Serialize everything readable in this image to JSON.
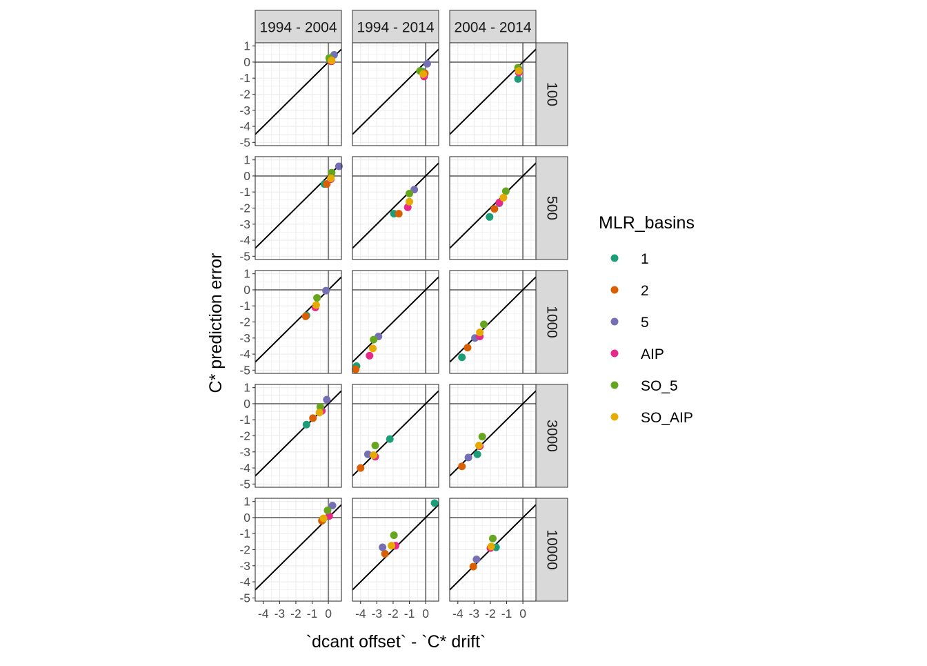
{
  "chart_data": {
    "type": "scatter",
    "facet_grid": true,
    "xlabel": "`dcant offset` - `C* drift`",
    "ylabel": "C* prediction error",
    "xlim": [
      -4.5,
      0.8
    ],
    "ylim": [
      -5.2,
      1.2
    ],
    "x_ticks": [
      -4,
      -3,
      -2,
      -1,
      0
    ],
    "y_ticks": [
      1,
      0,
      -1,
      -2,
      -3,
      -4,
      -5
    ],
    "reference_lines": {
      "hline": 0,
      "vline": 0,
      "identity": true
    },
    "grid": true,
    "columns": [
      "1994 - 2004",
      "1994 - 2014",
      "2004 - 2014"
    ],
    "rows": [
      "100",
      "500",
      "1000",
      "3000",
      "10000"
    ],
    "legend": {
      "title": "MLR_basins",
      "position": "right",
      "entries": [
        {
          "label": "1",
          "color": "#1B9E77"
        },
        {
          "label": "2",
          "color": "#D95F02"
        },
        {
          "label": "5",
          "color": "#7570B3"
        },
        {
          "label": "AIP",
          "color": "#E7298A"
        },
        {
          "label": "SO_5",
          "color": "#66A61E"
        },
        {
          "label": "SO_AIP",
          "color": "#E6AB02"
        }
      ]
    },
    "panels": [
      {
        "row": "100",
        "col": "1994 - 2004",
        "points": [
          {
            "series": "1",
            "x": 0.1,
            "y": 0.1
          },
          {
            "series": "2",
            "x": 0.15,
            "y": 0.05
          },
          {
            "series": "5",
            "x": 0.35,
            "y": 0.45
          },
          {
            "series": "AIP",
            "x": 0.2,
            "y": 0.05
          },
          {
            "series": "SO_5",
            "x": 0.05,
            "y": 0.25
          },
          {
            "series": "SO_AIP",
            "x": 0.2,
            "y": 0.1
          }
        ]
      },
      {
        "row": "100",
        "col": "1994 - 2014",
        "points": [
          {
            "series": "1",
            "x": -0.2,
            "y": -0.6
          },
          {
            "series": "2",
            "x": -0.05,
            "y": -0.7
          },
          {
            "series": "5",
            "x": 0.1,
            "y": -0.1
          },
          {
            "series": "AIP",
            "x": -0.1,
            "y": -0.9
          },
          {
            "series": "SO_5",
            "x": -0.35,
            "y": -0.55
          },
          {
            "series": "SO_AIP",
            "x": -0.15,
            "y": -0.75
          }
        ]
      },
      {
        "row": "100",
        "col": "2004 - 2014",
        "points": [
          {
            "series": "1",
            "x": -0.3,
            "y": -1.05
          },
          {
            "series": "2",
            "x": -0.25,
            "y": -0.55
          },
          {
            "series": "5",
            "x": -0.2,
            "y": -0.5
          },
          {
            "series": "AIP",
            "x": -0.25,
            "y": -0.65
          },
          {
            "series": "SO_5",
            "x": -0.3,
            "y": -0.35
          },
          {
            "series": "SO_AIP",
            "x": -0.25,
            "y": -0.55
          }
        ]
      },
      {
        "row": "500",
        "col": "1994 - 2004",
        "points": [
          {
            "series": "1",
            "x": -0.25,
            "y": -0.5
          },
          {
            "series": "2",
            "x": -0.1,
            "y": -0.5
          },
          {
            "series": "5",
            "x": 0.65,
            "y": 0.6
          },
          {
            "series": "AIP",
            "x": 0.15,
            "y": -0.2
          },
          {
            "series": "SO_5",
            "x": 0.2,
            "y": 0.2
          },
          {
            "series": "SO_AIP",
            "x": 0.15,
            "y": -0.15
          }
        ]
      },
      {
        "row": "500",
        "col": "1994 - 2014",
        "points": [
          {
            "series": "1",
            "x": -1.95,
            "y": -2.35
          },
          {
            "series": "2",
            "x": -1.65,
            "y": -2.35
          },
          {
            "series": "5",
            "x": -0.7,
            "y": -0.85
          },
          {
            "series": "AIP",
            "x": -1.1,
            "y": -1.95
          },
          {
            "series": "SO_5",
            "x": -1.0,
            "y": -1.1
          },
          {
            "series": "SO_AIP",
            "x": -1.0,
            "y": -1.6
          }
        ]
      },
      {
        "row": "500",
        "col": "2004 - 2014",
        "points": [
          {
            "series": "1",
            "x": -2.05,
            "y": -2.55
          },
          {
            "series": "2",
            "x": -1.75,
            "y": -2.05
          },
          {
            "series": "5",
            "x": -1.45,
            "y": -1.7
          },
          {
            "series": "AIP",
            "x": -1.45,
            "y": -1.65
          },
          {
            "series": "SO_5",
            "x": -1.05,
            "y": -0.95
          },
          {
            "series": "SO_AIP",
            "x": -1.2,
            "y": -1.35
          }
        ]
      },
      {
        "row": "1000",
        "col": "1994 - 2004",
        "points": [
          {
            "series": "1",
            "x": -1.35,
            "y": -1.6
          },
          {
            "series": "2",
            "x": -1.4,
            "y": -1.65
          },
          {
            "series": "5",
            "x": -0.15,
            "y": -0.05
          },
          {
            "series": "AIP",
            "x": -0.8,
            "y": -1.1
          },
          {
            "series": "SO_5",
            "x": -0.7,
            "y": -0.5
          },
          {
            "series": "SO_AIP",
            "x": -0.75,
            "y": -0.95
          }
        ]
      },
      {
        "row": "1000",
        "col": "1994 - 2014",
        "points": [
          {
            "series": "1",
            "x": -4.25,
            "y": -4.75
          },
          {
            "series": "2",
            "x": -4.3,
            "y": -4.95
          },
          {
            "series": "5",
            "x": -2.9,
            "y": -2.9
          },
          {
            "series": "AIP",
            "x": -3.45,
            "y": -4.1
          },
          {
            "series": "SO_5",
            "x": -3.2,
            "y": -3.1
          },
          {
            "series": "SO_AIP",
            "x": -3.25,
            "y": -3.65
          }
        ]
      },
      {
        "row": "1000",
        "col": "2004 - 2014",
        "points": [
          {
            "series": "1",
            "x": -3.75,
            "y": -4.2
          },
          {
            "series": "2",
            "x": -3.4,
            "y": -3.6
          },
          {
            "series": "5",
            "x": -2.95,
            "y": -3.0
          },
          {
            "series": "AIP",
            "x": -2.65,
            "y": -2.9
          },
          {
            "series": "SO_5",
            "x": -2.4,
            "y": -2.15
          },
          {
            "series": "SO_AIP",
            "x": -2.65,
            "y": -2.65
          }
        ]
      },
      {
        "row": "3000",
        "col": "1994 - 2004",
        "points": [
          {
            "series": "1",
            "x": -1.35,
            "y": -1.3
          },
          {
            "series": "2",
            "x": -0.95,
            "y": -0.9
          },
          {
            "series": "5",
            "x": -0.1,
            "y": 0.25
          },
          {
            "series": "AIP",
            "x": -0.4,
            "y": -0.45
          },
          {
            "series": "SO_5",
            "x": -0.5,
            "y": -0.2
          },
          {
            "series": "SO_AIP",
            "x": -0.55,
            "y": -0.55
          }
        ]
      },
      {
        "row": "3000",
        "col": "1994 - 2014",
        "points": [
          {
            "series": "1",
            "x": -2.2,
            "y": -2.2
          },
          {
            "series": "2",
            "x": -4.0,
            "y": -4.0
          },
          {
            "series": "5",
            "x": -3.55,
            "y": -3.15
          },
          {
            "series": "AIP",
            "x": -3.1,
            "y": -3.3
          },
          {
            "series": "SO_5",
            "x": -3.1,
            "y": -2.6
          },
          {
            "series": "SO_AIP",
            "x": -3.2,
            "y": -3.2
          }
        ]
      },
      {
        "row": "3000",
        "col": "2004 - 2014",
        "points": [
          {
            "series": "1",
            "x": -2.8,
            "y": -3.15
          },
          {
            "series": "2",
            "x": -3.75,
            "y": -3.9
          },
          {
            "series": "5",
            "x": -3.35,
            "y": -3.35
          },
          {
            "series": "AIP",
            "x": -2.65,
            "y": -2.65
          },
          {
            "series": "SO_5",
            "x": -2.5,
            "y": -2.05
          },
          {
            "series": "SO_AIP",
            "x": -2.7,
            "y": -2.6
          }
        ]
      },
      {
        "row": "10000",
        "col": "1994 - 2004",
        "points": [
          {
            "series": "1",
            "x": -0.35,
            "y": -0.15
          },
          {
            "series": "2",
            "x": -0.4,
            "y": -0.2
          },
          {
            "series": "5",
            "x": 0.25,
            "y": 0.75
          },
          {
            "series": "AIP",
            "x": 0.05,
            "y": 0.1
          },
          {
            "series": "SO_5",
            "x": -0.05,
            "y": 0.45
          },
          {
            "series": "SO_AIP",
            "x": -0.3,
            "y": -0.05
          }
        ]
      },
      {
        "row": "10000",
        "col": "1994 - 2014",
        "points": [
          {
            "series": "1",
            "x": 0.55,
            "y": 0.9
          },
          {
            "series": "2",
            "x": -2.5,
            "y": -2.25
          },
          {
            "series": "5",
            "x": -2.65,
            "y": -1.85
          },
          {
            "series": "AIP",
            "x": -1.85,
            "y": -1.75
          },
          {
            "series": "SO_5",
            "x": -1.95,
            "y": -1.1
          },
          {
            "series": "SO_AIP",
            "x": -2.1,
            "y": -1.75
          }
        ]
      },
      {
        "row": "10000",
        "col": "2004 - 2014",
        "points": [
          {
            "series": "1",
            "x": -1.65,
            "y": -1.85
          },
          {
            "series": "2",
            "x": -3.05,
            "y": -3.05
          },
          {
            "series": "5",
            "x": -2.85,
            "y": -2.6
          },
          {
            "series": "AIP",
            "x": -2.0,
            "y": -1.9
          },
          {
            "series": "SO_5",
            "x": -1.85,
            "y": -1.3
          },
          {
            "series": "SO_AIP",
            "x": -1.95,
            "y": -1.8
          }
        ]
      }
    ]
  }
}
